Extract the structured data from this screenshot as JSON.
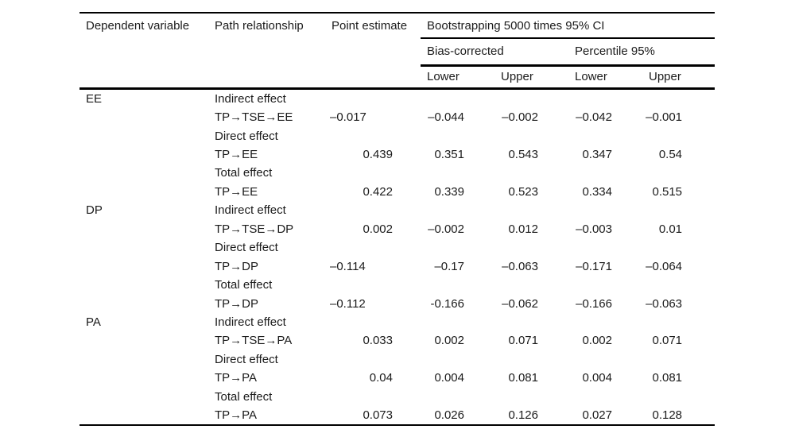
{
  "colors": {
    "text": "#1b1b1b",
    "rule": "#000000",
    "background": "#ffffff"
  },
  "table": {
    "headers": {
      "dependent_variable": "Dependent variable",
      "path_relationship": "Path relationship",
      "point_estimate": "Point estimate",
      "ci_group": "Bootstrapping 5000 times 95% CI",
      "bias_corrected": "Bias-corrected",
      "percentile": "Percentile 95%"
    },
    "sub_headers": [
      "Lower",
      "Upper",
      "Lower",
      "Upper"
    ],
    "rows": [
      [
        "EE",
        "Indirect effect",
        "",
        "",
        "",
        "",
        ""
      ],
      [
        "",
        "TP→TSE→EE",
        "–0.017",
        "–0.044",
        "–0.002",
        "–0.042",
        "–0.001"
      ],
      [
        "",
        "Direct effect",
        "",
        "",
        "",
        "",
        ""
      ],
      [
        "",
        "TP→EE",
        "0.439",
        "0.351",
        "0.543",
        "0.347",
        "0.54"
      ],
      [
        "",
        "Total effect",
        "",
        "",
        "",
        "",
        ""
      ],
      [
        "",
        "TP→EE",
        "0.422",
        "0.339",
        "0.523",
        "0.334",
        "0.515"
      ],
      [
        "DP",
        "Indirect effect",
        "",
        "",
        "",
        "",
        ""
      ],
      [
        "",
        "TP→TSE→DP",
        "0.002",
        "–0.002",
        "0.012",
        "–0.003",
        "0.01"
      ],
      [
        "",
        "Direct effect",
        "",
        "",
        "",
        "",
        ""
      ],
      [
        "",
        "TP→DP",
        "–0.114",
        "–0.17",
        "–0.063",
        "–0.171",
        "–0.064"
      ],
      [
        "",
        "Total effect",
        "",
        "",
        "",
        "",
        ""
      ],
      [
        "",
        "TP→DP",
        "–0.112",
        "-0.166",
        "–0.062",
        "–0.166",
        "–0.063"
      ],
      [
        "PA",
        "Indirect effect",
        "",
        "",
        "",
        "",
        ""
      ],
      [
        "",
        "TP→TSE→PA",
        "0.033",
        "0.002",
        "0.071",
        "0.002",
        "0.071"
      ],
      [
        "",
        "Direct effect",
        "",
        "",
        "",
        "",
        ""
      ],
      [
        "",
        "TP→PA",
        "0.04",
        "0.004",
        "0.081",
        "0.004",
        "0.081"
      ],
      [
        "",
        "Total effect",
        "",
        "",
        "",
        "",
        ""
      ],
      [
        "",
        "TP→PA",
        "0.073",
        "0.026",
        "0.126",
        "0.027",
        "0.128"
      ]
    ]
  }
}
